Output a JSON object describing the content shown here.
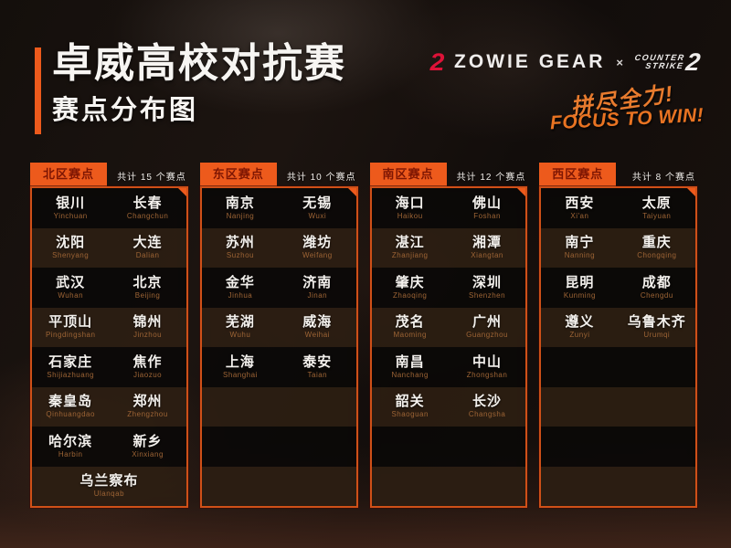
{
  "header": {
    "title": "卓威高校对抗赛",
    "subtitle": "赛点分布图",
    "zowie_mark_glyph": "2",
    "zowie_text": "ZOWIE GEAR",
    "separator": "×",
    "cs_line1": "COUNTER",
    "cs_line2": "STRIKE",
    "cs_number": "2",
    "slogan_cn": "拼尽全力!",
    "slogan_en": "FOCUS TO WIN!"
  },
  "colors": {
    "accent_orange": "#ed5a1c",
    "panel_border": "#cf5018",
    "tab_text": "#7e1603",
    "zowie_red": "#de1238",
    "slogan_orange": "#e87322",
    "pinyin_brown": "#9d6435",
    "row_dark": "#0b0908",
    "row_brown": "#2c1e12"
  },
  "regions": [
    {
      "name": "北区赛点",
      "count_label": "共计 15 个赛点",
      "empty_rows": 0,
      "rows": [
        [
          {
            "cn": "银川",
            "py": "Yinchuan"
          },
          {
            "cn": "长春",
            "py": "Changchun"
          }
        ],
        [
          {
            "cn": "沈阳",
            "py": "Shenyang"
          },
          {
            "cn": "大连",
            "py": "Dalian"
          }
        ],
        [
          {
            "cn": "武汉",
            "py": "Wuhan"
          },
          {
            "cn": "北京",
            "py": "Beijing"
          }
        ],
        [
          {
            "cn": "平顶山",
            "py": "Pingdingshan"
          },
          {
            "cn": "锦州",
            "py": "Jinzhou"
          }
        ],
        [
          {
            "cn": "石家庄",
            "py": "Shijiazhuang"
          },
          {
            "cn": "焦作",
            "py": "Jiaozuo"
          }
        ],
        [
          {
            "cn": "秦皇岛",
            "py": "Qinhuangdao"
          },
          {
            "cn": "郑州",
            "py": "Zhengzhou"
          }
        ],
        [
          {
            "cn": "哈尔滨",
            "py": "Harbin"
          },
          {
            "cn": "新乡",
            "py": "Xinxiang"
          }
        ],
        [
          {
            "cn": "乌兰察布",
            "py": "Ulanqab"
          }
        ]
      ]
    },
    {
      "name": "东区赛点",
      "count_label": "共计 10 个赛点",
      "empty_rows": 3,
      "rows": [
        [
          {
            "cn": "南京",
            "py": "Nanjing"
          },
          {
            "cn": "无锡",
            "py": "Wuxi"
          }
        ],
        [
          {
            "cn": "苏州",
            "py": "Suzhou"
          },
          {
            "cn": "潍坊",
            "py": "Weifang"
          }
        ],
        [
          {
            "cn": "金华",
            "py": "Jinhua"
          },
          {
            "cn": "济南",
            "py": "Jinan"
          }
        ],
        [
          {
            "cn": "芜湖",
            "py": "Wuhu"
          },
          {
            "cn": "威海",
            "py": "Weihai"
          }
        ],
        [
          {
            "cn": "上海",
            "py": "Shanghai"
          },
          {
            "cn": "泰安",
            "py": "Taian"
          }
        ]
      ]
    },
    {
      "name": "南区赛点",
      "count_label": "共计 12 个赛点",
      "empty_rows": 2,
      "rows": [
        [
          {
            "cn": "海口",
            "py": "Haikou"
          },
          {
            "cn": "佛山",
            "py": "Foshan"
          }
        ],
        [
          {
            "cn": "湛江",
            "py": "Zhanjiang"
          },
          {
            "cn": "湘潭",
            "py": "Xiangtan"
          }
        ],
        [
          {
            "cn": "肇庆",
            "py": "Zhaoqing"
          },
          {
            "cn": "深圳",
            "py": "Shenzhen"
          }
        ],
        [
          {
            "cn": "茂名",
            "py": "Maoming"
          },
          {
            "cn": "广州",
            "py": "Guangzhou"
          }
        ],
        [
          {
            "cn": "南昌",
            "py": "Nanchang"
          },
          {
            "cn": "中山",
            "py": "Zhongshan"
          }
        ],
        [
          {
            "cn": "韶关",
            "py": "Shaoguan"
          },
          {
            "cn": "长沙",
            "py": "Changsha"
          }
        ]
      ]
    },
    {
      "name": "西区赛点",
      "count_label": "共计 8 个赛点",
      "empty_rows": 4,
      "rows": [
        [
          {
            "cn": "西安",
            "py": "Xi'an"
          },
          {
            "cn": "太原",
            "py": "Taiyuan"
          }
        ],
        [
          {
            "cn": "南宁",
            "py": "Nanning"
          },
          {
            "cn": "重庆",
            "py": "Chongqing"
          }
        ],
        [
          {
            "cn": "昆明",
            "py": "Kunming"
          },
          {
            "cn": "成都",
            "py": "Chengdu"
          }
        ],
        [
          {
            "cn": "遵义",
            "py": "Zunyi"
          },
          {
            "cn": "乌鲁木齐",
            "py": "Urumqi"
          }
        ]
      ]
    }
  ]
}
